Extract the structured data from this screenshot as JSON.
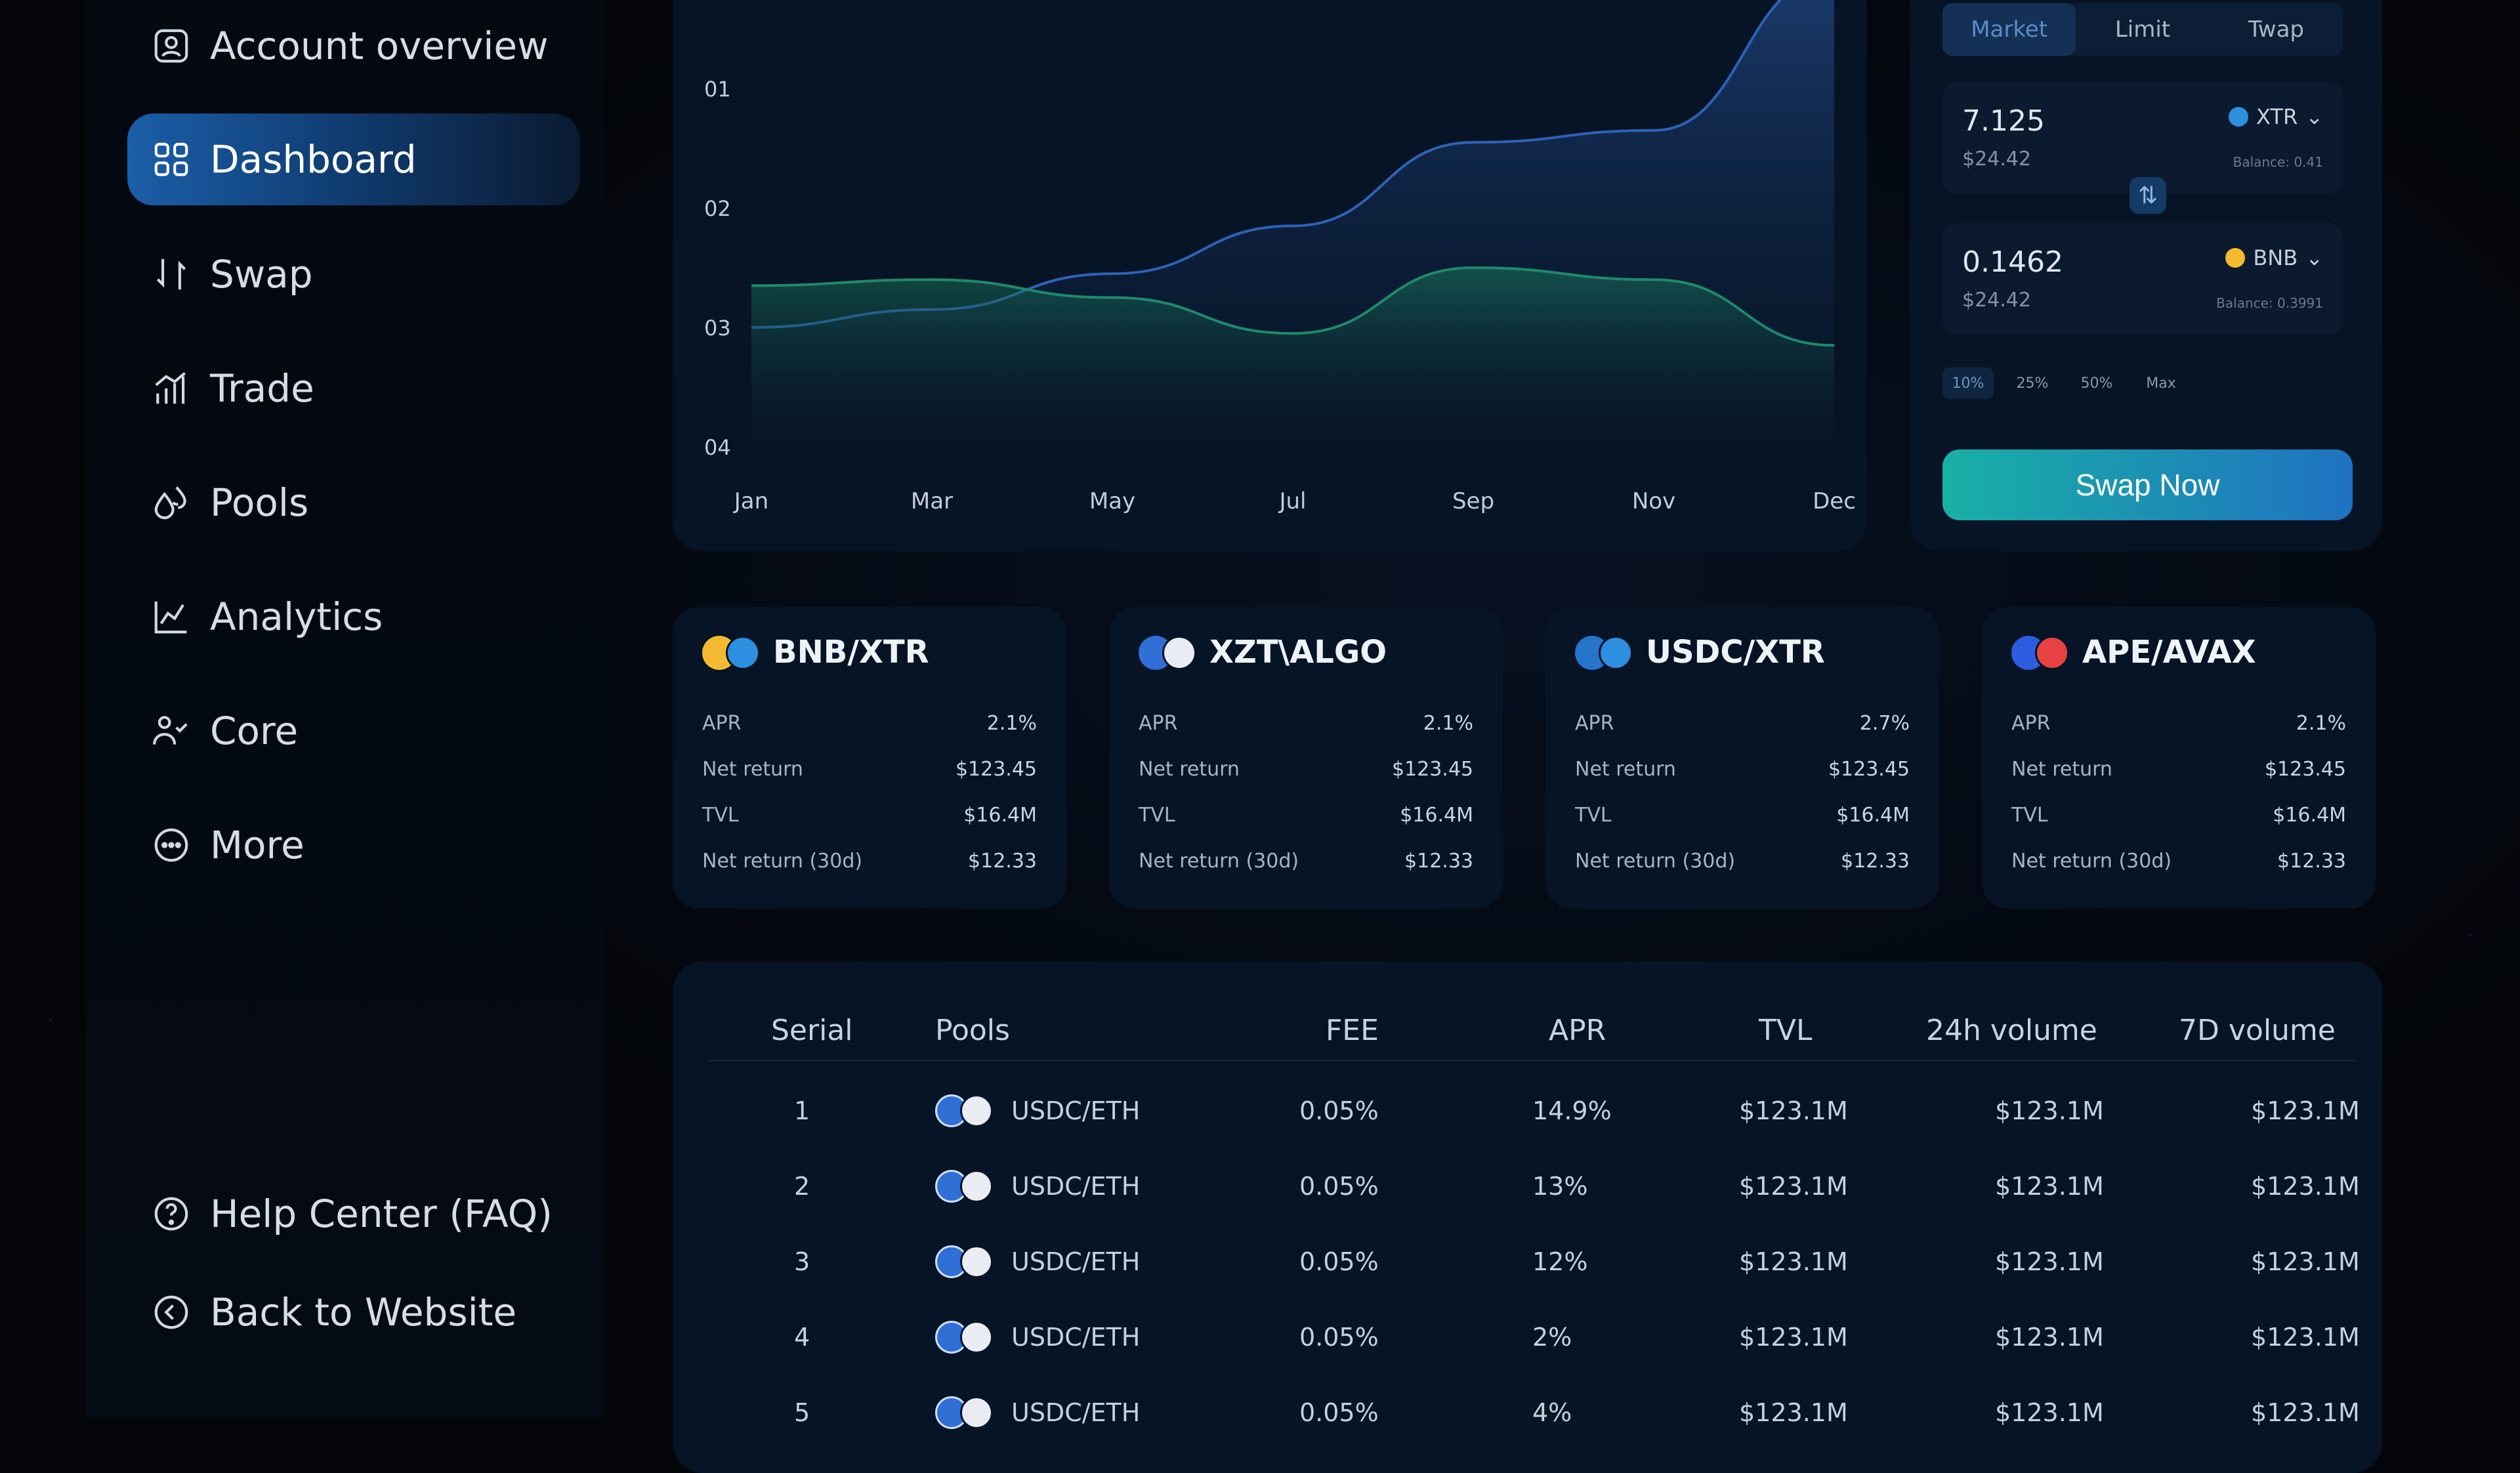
{
  "sidebar": {
    "items": [
      {
        "label": "Account overview",
        "icon": "user-square-icon"
      },
      {
        "label": "Dashboard",
        "icon": "grid-icon",
        "active": true
      },
      {
        "label": "Swap",
        "icon": "swap-arrows-icon"
      },
      {
        "label": "Trade",
        "icon": "bar-chart-icon"
      },
      {
        "label": "Pools",
        "icon": "droplets-icon"
      },
      {
        "label": "Analytics",
        "icon": "line-chart-icon"
      },
      {
        "label": "Core",
        "icon": "people-icon"
      },
      {
        "label": "More",
        "icon": "more-circle-icon"
      }
    ],
    "footer": [
      {
        "label": "Help Center (FAQ)",
        "icon": "help-circle-icon"
      },
      {
        "label": "Back to Website",
        "icon": "back-circle-icon"
      }
    ]
  },
  "chart_data": {
    "type": "area",
    "categories": [
      "Jan",
      "Mar",
      "May",
      "Jul",
      "Sep",
      "Nov",
      "Dec"
    ],
    "yticks": [
      "01",
      "02",
      "03",
      "04"
    ],
    "series": [
      {
        "values": [
          3.0,
          2.85,
          2.55,
          2.15,
          1.45,
          1.35,
          0.05
        ],
        "color": "#2e62b8"
      },
      {
        "values": [
          2.65,
          2.6,
          2.75,
          3.05,
          2.5,
          2.6,
          3.15
        ],
        "color": "#1e8a6a"
      }
    ]
  },
  "swap": {
    "tabs": [
      "Market",
      "Limit",
      "Twap"
    ],
    "from": {
      "amount": "7.125",
      "usd": "$24.42",
      "token": "XTR",
      "balance": "Balance: 0.41",
      "color": "#2d8fe0"
    },
    "to": {
      "amount": "0.1462",
      "usd": "$24.42",
      "token": "BNB",
      "balance": "Balance: 0.3991",
      "color": "#f3ba2f"
    },
    "percents": [
      "10%",
      "25%",
      "50%",
      "Max"
    ],
    "button": "Swap Now"
  },
  "pools": [
    {
      "pair": "BNB/XTR",
      "colors": [
        "#f3ba2f",
        "#2d8fe0"
      ],
      "apr": "2.1%",
      "net": "$123.45",
      "tvl": "$16.4M",
      "net30": "$12.33"
    },
    {
      "pair": "XZT\\ALGO",
      "colors": [
        "#2f6fd6",
        "#e9edf3"
      ],
      "apr": "2.1%",
      "net": "$123.45",
      "tvl": "$16.4M",
      "net30": "$12.33"
    },
    {
      "pair": "USDC/XTR",
      "colors": [
        "#2775ca",
        "#2d8fe0"
      ],
      "apr": "2.7%",
      "net": "$123.45",
      "tvl": "$16.4M",
      "net30": "$12.33"
    },
    {
      "pair": "APE/AVAX",
      "colors": [
        "#2e5ce0",
        "#e84142"
      ],
      "apr": "2.1%",
      "net": "$123.45",
      "tvl": "$16.4M",
      "net30": "$12.33"
    }
  ],
  "pool_labels": {
    "apr": "APR",
    "net": "Net return",
    "tvl": "TVL",
    "net30": "Net return (30d)"
  },
  "table": {
    "headers": [
      "Serial",
      "Pools",
      "FEE",
      "APR",
      "TVL",
      "24h volume",
      "7D volume"
    ],
    "rows": [
      {
        "serial": "1",
        "pool": "USDC/ETH",
        "fee": "0.05%",
        "apr": "14.9%",
        "tvl": "$123.1M",
        "v24": "$123.1M",
        "v7": "$123.1M"
      },
      {
        "serial": "2",
        "pool": "USDC/ETH",
        "fee": "0.05%",
        "apr": "13%",
        "tvl": "$123.1M",
        "v24": "$123.1M",
        "v7": "$123.1M"
      },
      {
        "serial": "3",
        "pool": "USDC/ETH",
        "fee": "0.05%",
        "apr": "12%",
        "tvl": "$123.1M",
        "v24": "$123.1M",
        "v7": "$123.1M"
      },
      {
        "serial": "4",
        "pool": "USDC/ETH",
        "fee": "0.05%",
        "apr": "2%",
        "tvl": "$123.1M",
        "v24": "$123.1M",
        "v7": "$123.1M"
      },
      {
        "serial": "5",
        "pool": "USDC/ETH",
        "fee": "0.05%",
        "apr": "4%",
        "tvl": "$123.1M",
        "v24": "$123.1M",
        "v7": "$123.1M"
      }
    ]
  }
}
